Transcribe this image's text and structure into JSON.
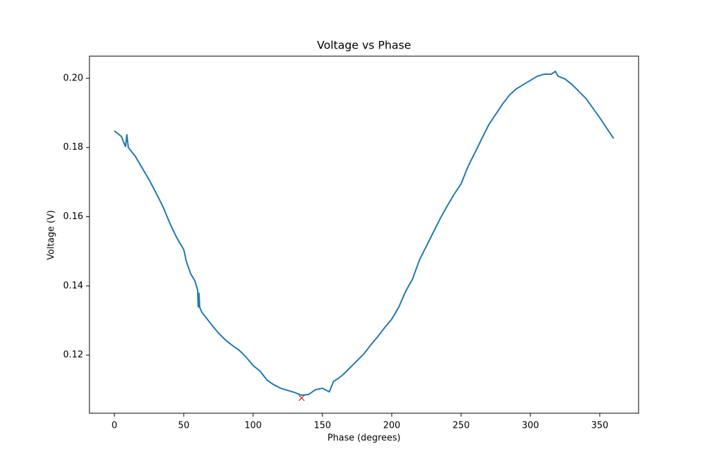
{
  "chart_data": {
    "type": "line",
    "title": "Voltage vs Phase",
    "x_label": "Phase (degrees)",
    "y_label": "Voltage (V)",
    "x": [
      0,
      5,
      8,
      9,
      10,
      15,
      20,
      25,
      30,
      35,
      40,
      45,
      50,
      52,
      55,
      58,
      60,
      60.5,
      61,
      61.5,
      63,
      65,
      70,
      75,
      80,
      85,
      90,
      95,
      100,
      105,
      110,
      115,
      120,
      125,
      130,
      135,
      140,
      145,
      150,
      155,
      158,
      162,
      165,
      170,
      175,
      180,
      185,
      190,
      195,
      200,
      205,
      210,
      215,
      220,
      225,
      230,
      235,
      240,
      245,
      250,
      255,
      260,
      265,
      270,
      275,
      280,
      285,
      290,
      295,
      300,
      305,
      310,
      315,
      318,
      320,
      325,
      330,
      335,
      340,
      345,
      350,
      355,
      360
    ],
    "values": [
      0.1848,
      0.1832,
      0.1802,
      0.1838,
      0.18,
      0.1775,
      0.1741,
      0.1707,
      0.1669,
      0.1629,
      0.1581,
      0.1539,
      0.1505,
      0.1469,
      0.1435,
      0.1415,
      0.1388,
      0.1338,
      0.138,
      0.1338,
      0.1324,
      0.1314,
      0.1288,
      0.1264,
      0.1244,
      0.1228,
      0.1214,
      0.1194,
      0.117,
      0.1154,
      0.1128,
      0.1114,
      0.1104,
      0.1098,
      0.1092,
      0.1084,
      0.1086,
      0.11,
      0.1104,
      0.1094,
      0.1124,
      0.1134,
      0.1144,
      0.1164,
      0.1184,
      0.1204,
      0.123,
      0.1254,
      0.128,
      0.1304,
      0.1338,
      0.1384,
      0.142,
      0.1475,
      0.1515,
      0.1555,
      0.1595,
      0.1631,
      0.1665,
      0.1695,
      0.1745,
      0.1785,
      0.1826,
      0.1866,
      0.1896,
      0.1926,
      0.1952,
      0.197,
      0.1982,
      0.1994,
      0.2006,
      0.2012,
      0.2012,
      0.202,
      0.2006,
      0.1998,
      0.1982,
      0.1962,
      0.1942,
      0.1914,
      0.1886,
      0.1856,
      0.1826
    ],
    "color": "#1f77b4",
    "marker": {
      "x": 135,
      "y": 0.1076,
      "color": "#d62728"
    },
    "xlim": [
      -18,
      378
    ],
    "xticks": [
      0,
      50,
      100,
      150,
      200,
      250,
      300,
      350
    ],
    "ylim": [
      0.1032,
      0.2064
    ],
    "yticks": [
      0.12,
      0.14,
      0.16,
      0.18,
      {
        "value": 0.2,
        "label": "0.20"
      }
    ]
  }
}
